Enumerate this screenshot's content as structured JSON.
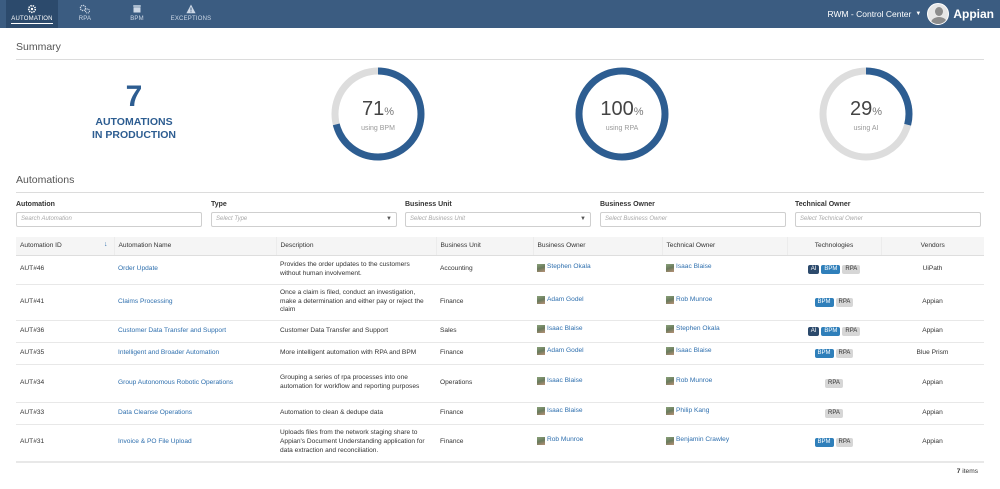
{
  "nav": {
    "tabs": [
      {
        "label": "AUTOMATION",
        "icon": "gear-icon",
        "active": true
      },
      {
        "label": "RPA",
        "icon": "gears-icon",
        "active": false
      },
      {
        "label": "BPM",
        "icon": "box-icon",
        "active": false
      },
      {
        "label": "EXCEPTIONS",
        "icon": "warning-icon",
        "active": false
      }
    ],
    "site_name": "RWM - Control Center",
    "brand": "Appian"
  },
  "summary": {
    "title": "Summary",
    "count": "7",
    "count_label_1": "AUTOMATIONS",
    "count_label_2": "IN PRODUCTION",
    "gauges": [
      {
        "value": 71,
        "pct_symbol": "%",
        "label": "using BPM"
      },
      {
        "value": 100,
        "pct_symbol": "%",
        "label": "using RPA"
      },
      {
        "value": 29,
        "pct_symbol": "%",
        "label": "using AI"
      }
    ]
  },
  "automations": {
    "title": "Automations",
    "filters": [
      {
        "label": "Automation",
        "placeholder": "Search Automation",
        "dropdown": false
      },
      {
        "label": "Type",
        "placeholder": "Select Type",
        "dropdown": true
      },
      {
        "label": "Business Unit",
        "placeholder": "Select Business Unit",
        "dropdown": true
      },
      {
        "label": "Business Owner",
        "placeholder": "Select Business Owner",
        "dropdown": false
      },
      {
        "label": "Technical Owner",
        "placeholder": "Select Technical Owner",
        "dropdown": false
      }
    ],
    "columns": [
      "Automation ID",
      "Automation Name",
      "Description",
      "Business Unit",
      "Business Owner",
      "Technical Owner",
      "Technologies",
      "Vendors"
    ],
    "rows": [
      {
        "id": "AUT#46",
        "name": "Order Update",
        "desc": "Provides the order updates to the customers without human involvement.",
        "unit": "Accounting",
        "bowner": "Stephen Okala",
        "towner": "Isaac Blaise",
        "tech": [
          "AI",
          "BPM",
          "RPA"
        ],
        "vendor": "UiPath"
      },
      {
        "id": "AUT#41",
        "name": "Claims Processing",
        "desc": "Once a claim is filed, conduct an investigation, make a determination and either pay or reject the claim",
        "unit": "Finance",
        "bowner": "Adam Godel",
        "towner": "Rob Munroe",
        "tech": [
          "BPM",
          "RPA"
        ],
        "vendor": "Appian"
      },
      {
        "id": "AUT#36",
        "name": "Customer Data Transfer and Support",
        "desc": "Customer Data Transfer and Support",
        "unit": "Sales",
        "bowner": "Isaac Blaise",
        "towner": "Stephen Okala",
        "tech": [
          "AI",
          "BPM",
          "RPA"
        ],
        "vendor": "Appian"
      },
      {
        "id": "AUT#35",
        "name": "Intelligent and Broader Automation",
        "desc": "More intelligent automation with RPA and BPM",
        "unit": "Finance",
        "bowner": "Adam Godel",
        "towner": "Isaac Blaise",
        "tech": [
          "BPM",
          "RPA"
        ],
        "vendor": "Blue Prism"
      },
      {
        "id": "AUT#34",
        "name": "Group Autonomous Robotic Operations",
        "desc": "Grouping a series of rpa processes into one automation for workflow and reporting purposes",
        "unit": "Operations",
        "bowner": "Isaac Blaise",
        "towner": "Rob Munroe",
        "tech": [
          "RPA"
        ],
        "vendor": "Appian"
      },
      {
        "id": "AUT#33",
        "name": "Data Cleanse Operations",
        "desc": "Automation to clean & dedupe data",
        "unit": "Finance",
        "bowner": "Isaac Blaise",
        "towner": "Philip Kang",
        "tech": [
          "RPA"
        ],
        "vendor": "Appian"
      },
      {
        "id": "AUT#31",
        "name": "Invoice & PO File Upload",
        "desc": "Uploads files from the network staging share to Appian's Document Understanding application for data extraction and reconciliation.",
        "unit": "Finance",
        "bowner": "Rob Munroe",
        "towner": "Benjamin Crawley",
        "tech": [
          "BPM",
          "RPA"
        ],
        "vendor": "Appian"
      }
    ],
    "footer_count": "7",
    "footer_label": "items"
  },
  "colors": {
    "nav_bg": "#3b5c81",
    "accent": "#2d5d91",
    "gauge_track": "#dddddd",
    "badge_ai": "#2c4a6c",
    "badge_bpm": "#2f7fba",
    "badge_rpa": "#d6d6d6"
  }
}
